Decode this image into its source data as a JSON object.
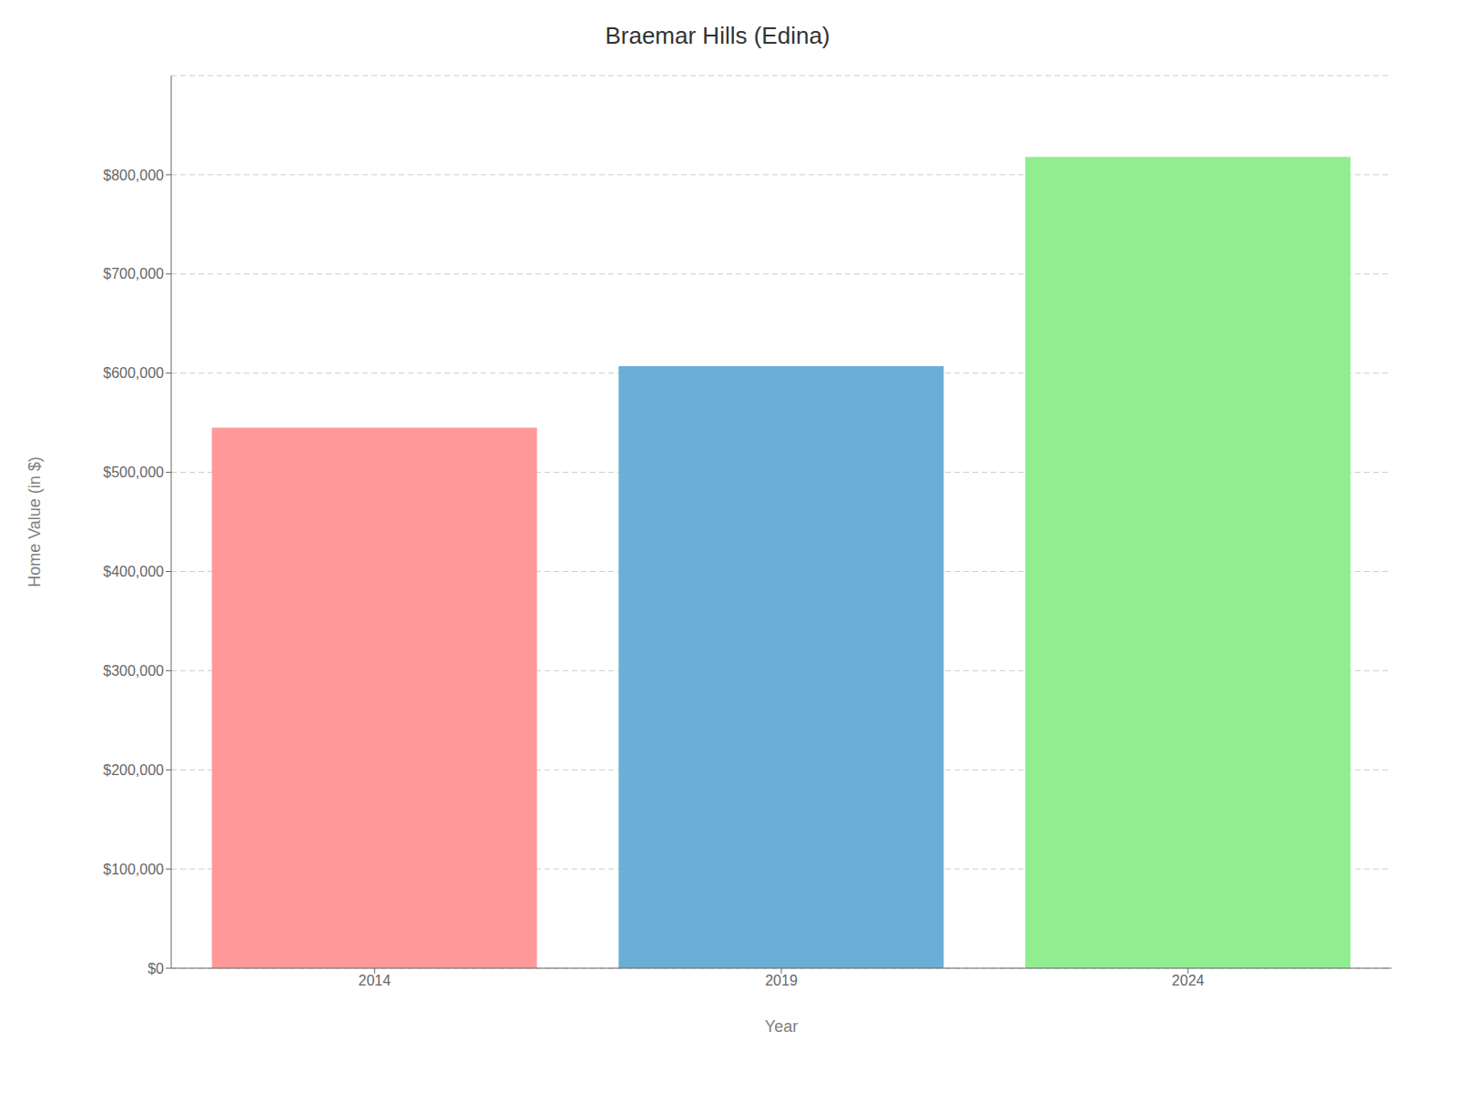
{
  "chart_data": {
    "type": "bar",
    "title": "Braemar Hills (Edina)",
    "categories": [
      "2014",
      "2019",
      "2024"
    ],
    "values": [
      545000,
      607000,
      818000
    ],
    "colors": [
      "#FF9999",
      "#6BAED6",
      "#90EE90"
    ],
    "xlabel": "Year",
    "ylabel": "Home Value (in $)",
    "ylim": [
      0,
      900000
    ],
    "yticks": [
      {
        "value": 0,
        "label": "$0"
      },
      {
        "value": 100000,
        "label": "$100,000"
      },
      {
        "value": 200000,
        "label": "$200,000"
      },
      {
        "value": 300000,
        "label": "$300,000"
      },
      {
        "value": 400000,
        "label": "$400,000"
      },
      {
        "value": 500000,
        "label": "$500,000"
      },
      {
        "value": 600000,
        "label": "$600,000"
      },
      {
        "value": 700000,
        "label": "$700,000"
      },
      {
        "value": 800000,
        "label": "$800,000"
      }
    ],
    "grid": true
  }
}
